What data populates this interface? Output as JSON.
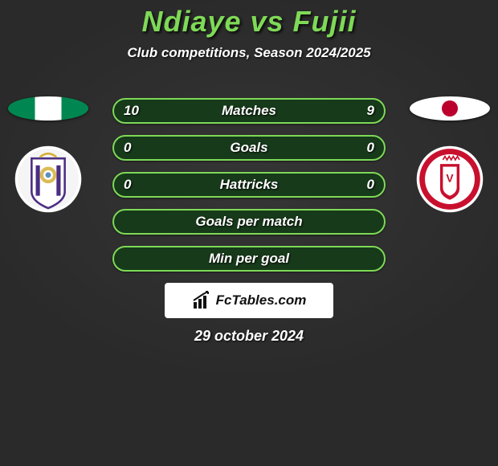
{
  "header": {
    "title": "Ndiaye vs Fujii",
    "title_color": "#7ed957",
    "subtitle": "Club competitions, Season 2024/2025"
  },
  "left": {
    "flag_colors": [
      "#008751",
      "#ffffff",
      "#008751"
    ],
    "club_name": "anderlecht",
    "club_primary": "#4b2e83",
    "club_secondary": "#ffffff"
  },
  "right": {
    "flag_colors": [
      "#ffffff",
      "#bc002d"
    ],
    "club_name": "kortrijk",
    "club_primary": "#c8102e",
    "club_secondary": "#ffffff"
  },
  "bars": [
    {
      "label": "Matches",
      "left": "10",
      "right": "9",
      "fill": "#173a1a",
      "border": "#7ed957"
    },
    {
      "label": "Goals",
      "left": "0",
      "right": "0",
      "fill": "#173a1a",
      "border": "#7ed957"
    },
    {
      "label": "Hattricks",
      "left": "0",
      "right": "0",
      "fill": "#173a1a",
      "border": "#7ed957"
    },
    {
      "label": "Goals per match",
      "left": "",
      "right": "",
      "fill": "#173a1a",
      "border": "#7ed957"
    },
    {
      "label": "Min per goal",
      "left": "",
      "right": "",
      "fill": "#173a1a",
      "border": "#7ed957"
    }
  ],
  "footer": {
    "brand": "FcTables.com",
    "date": "29 october 2024"
  }
}
